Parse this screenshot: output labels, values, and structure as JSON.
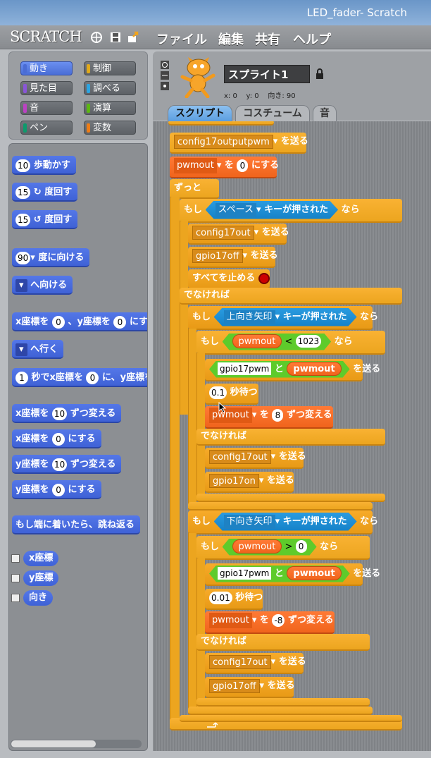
{
  "window": {
    "title": "LED_fader- Scratch"
  },
  "menu": {
    "logo": "SCRATCH",
    "items": [
      "ファイル",
      "編集",
      "共有",
      "ヘルプ"
    ]
  },
  "categories": [
    {
      "label": "動き",
      "color": "#4a6cd4",
      "selected": true
    },
    {
      "label": "制御",
      "color": "#e1a91a",
      "selected": false
    },
    {
      "label": "見た目",
      "color": "#8a55d7",
      "selected": false
    },
    {
      "label": "調べる",
      "color": "#2ca5e2",
      "selected": false
    },
    {
      "label": "音",
      "color": "#bb42c3",
      "selected": false
    },
    {
      "label": "演算",
      "color": "#5cb712",
      "selected": false
    },
    {
      "label": "ペン",
      "color": "#0e9a6c",
      "selected": false
    },
    {
      "label": "変数",
      "color": "#ee7d16",
      "selected": false
    }
  ],
  "palette": {
    "move": {
      "val": "10",
      "txt": "歩動かす"
    },
    "turn_cw": {
      "val": "15",
      "txt": "度回す"
    },
    "turn_ccw": {
      "val": "15",
      "txt": "度回す"
    },
    "point_dir": {
      "val": "90",
      "txt": "度に向ける"
    },
    "point_to": {
      "txt": "へ向ける"
    },
    "goto_xy": {
      "a": "x座標を",
      "x": "0",
      "b": "、y座標を",
      "y": "0",
      "c": "にする"
    },
    "goto": {
      "txt": "へ行く"
    },
    "glide": {
      "t": "1",
      "a": "秒でx座標を",
      "x": "0",
      "b": "に、y座標を"
    },
    "change_x": {
      "a": "x座標を",
      "v": "10",
      "b": "ずつ変える"
    },
    "set_x": {
      "a": "x座標を",
      "v": "0",
      "b": "にする"
    },
    "change_y": {
      "a": "y座標を",
      "v": "10",
      "b": "ずつ変える"
    },
    "set_y": {
      "a": "y座標を",
      "v": "0",
      "b": "にする"
    },
    "bounce": {
      "txt": "もし端に着いたら、跳ね返る"
    },
    "rep_x": "x座標",
    "rep_y": "y座標",
    "rep_dir": "向き"
  },
  "sprite": {
    "name": "スプライト1",
    "x_label": "x: 0",
    "y_label": "y: 0",
    "dir_label": "向き: 90"
  },
  "tabs": [
    "スクリプト",
    "コスチューム",
    "音"
  ],
  "script": {
    "b0": {
      "dd": "config17outputpwm",
      "txt": "を送る"
    },
    "b1": {
      "var": "pwmout",
      "a": "を",
      "v": "0",
      "b": "にする"
    },
    "forever": "ずっと",
    "if1": {
      "a": "もし",
      "key": "スペース",
      "b": "キーが押された",
      "c": "なら"
    },
    "s1": {
      "dd": "config17out",
      "txt": "を送る"
    },
    "s2": {
      "dd": "gpio17off",
      "txt": "を送る"
    },
    "s3": {
      "txt": "すべてを止める"
    },
    "else1": "でなければ",
    "if2": {
      "a": "もし",
      "key": "上向き矢印",
      "b": "キーが押された",
      "c": "なら"
    },
    "if3": {
      "a": "もし",
      "var": "pwmout",
      "op": "<",
      "v": "1023",
      "c": "なら"
    },
    "u1": {
      "t": "gpio17pwm",
      "j": "と",
      "var": "pwmout",
      "txt": "を送る"
    },
    "u2": {
      "v": "0.1",
      "txt": "秒待つ"
    },
    "u3": {
      "var": "pwmout",
      "a": "を",
      "v": "8",
      "b": "ずつ変える"
    },
    "else2": "でなければ",
    "u4": {
      "dd": "config17out",
      "txt": "を送る"
    },
    "u5": {
      "dd": "gpio17on",
      "txt": "を送る"
    },
    "if4": {
      "a": "もし",
      "key": "下向き矢印",
      "b": "キーが押された",
      "c": "なら"
    },
    "if5": {
      "a": "もし",
      "var": "pwmout",
      "op": ">",
      "v": "0",
      "c": "なら"
    },
    "d1": {
      "t": "gpio17pwm",
      "j": "と",
      "var": "pwmout",
      "txt": "を送る"
    },
    "d2": {
      "v": "0.01",
      "txt": "秒待つ"
    },
    "d3": {
      "var": "pwmout",
      "a": "を",
      "v": "-8",
      "b": "ずつ変える"
    },
    "else3": "でなければ",
    "d4": {
      "dd": "config17out",
      "txt": "を送る"
    },
    "d5": {
      "dd": "gpio17off",
      "txt": "を送る"
    }
  }
}
